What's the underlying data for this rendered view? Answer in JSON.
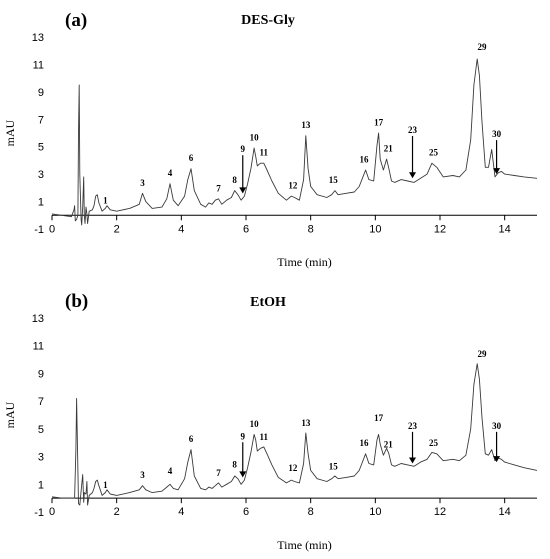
{
  "chart_data": [
    {
      "type": "line",
      "panel_label": "(a)",
      "title": "DES-Gly",
      "xlabel": "Time (min)",
      "ylabel": "mAU",
      "xlim": [
        0,
        15
      ],
      "ylim": [
        -1,
        13
      ],
      "xticks": [
        "0",
        "2",
        "4",
        "6",
        "8",
        "10",
        "12",
        "14"
      ],
      "yticks": [
        "-1",
        "1",
        "3",
        "5",
        "7",
        "9",
        "11",
        "13"
      ],
      "grid": false,
      "series": [
        {
          "x": [
            0,
            0.3,
            0.6,
            0.68,
            0.7,
            0.72,
            0.76,
            0.8,
            0.82,
            0.84,
            0.86,
            0.9,
            0.92,
            0.95,
            0.98,
            1.0,
            1.02,
            1.05,
            1.08,
            1.1,
            1.15,
            1.25,
            1.3,
            1.35,
            1.4,
            1.45,
            1.55,
            1.65,
            1.7,
            1.8,
            2.0,
            2.4,
            2.7,
            2.8,
            2.9,
            3.1,
            3.4,
            3.55,
            3.65,
            3.75,
            3.9,
            4.1,
            4.2,
            4.3,
            4.4,
            4.6,
            4.75,
            4.85,
            4.95,
            5.05,
            5.15,
            5.25,
            5.4,
            5.55,
            5.65,
            5.75,
            5.85,
            5.95,
            6.05,
            6.15,
            6.25,
            6.3,
            6.35,
            6.45,
            6.55,
            6.65,
            6.8,
            7.0,
            7.25,
            7.4,
            7.5,
            7.65,
            7.78,
            7.85,
            7.92,
            8.0,
            8.2,
            8.5,
            8.65,
            8.75,
            8.85,
            9.1,
            9.35,
            9.5,
            9.6,
            9.7,
            9.8,
            9.95,
            10.05,
            10.1,
            10.15,
            10.25,
            10.35,
            10.42,
            10.5,
            10.6,
            10.8,
            11.0,
            11.2,
            11.4,
            11.6,
            11.75,
            11.9,
            12.1,
            12.4,
            12.6,
            12.8,
            12.95,
            13.05,
            13.15,
            13.22,
            13.3,
            13.4,
            13.5,
            13.6,
            13.7,
            13.8,
            13.9,
            14.0,
            14.3,
            14.6,
            15.0
          ],
          "y": [
            0.1,
            0,
            -0.1,
            0.4,
            0.7,
            -0.4,
            -0.3,
            0,
            6,
            9.5,
            3,
            -0.3,
            -0.7,
            0.6,
            2.8,
            0,
            -0.6,
            0.6,
            0.1,
            -0.6,
            0.3,
            0.4,
            0.7,
            1.4,
            1.5,
            0.9,
            0.3,
            0.5,
            0.7,
            0.4,
            0.3,
            0.5,
            0.8,
            1.6,
            1,
            0.5,
            0.6,
            1.2,
            2.3,
            1.1,
            0.7,
            1.4,
            2.6,
            3.4,
            1.8,
            0.8,
            0.6,
            0.9,
            0.8,
            1.1,
            1.2,
            0.8,
            1.1,
            1.3,
            1.8,
            1.5,
            1.1,
            1.4,
            2.3,
            3.4,
            4.9,
            4.3,
            3.6,
            3.8,
            3.8,
            3.3,
            2.5,
            1.6,
            1.1,
            1.4,
            1.3,
            1.1,
            2.6,
            5.8,
            3.4,
            2.1,
            1.5,
            1.3,
            1.5,
            1.8,
            1.5,
            1.6,
            1.7,
            2.1,
            2.7,
            3.3,
            2.6,
            2.5,
            5.1,
            6,
            4.1,
            3.3,
            4.1,
            3.4,
            2.5,
            2.4,
            2.6,
            2.5,
            2.4,
            2.7,
            3.0,
            3.8,
            3.5,
            2.8,
            2.9,
            2.8,
            3.3,
            5.5,
            9.5,
            11.4,
            10.2,
            6.8,
            3.5,
            3.5,
            4.8,
            2.8,
            3.1,
            3.2,
            3,
            2.9,
            2.8,
            2.7
          ]
        }
      ],
      "annotations": [
        {
          "label": "1",
          "x": 1.65,
          "y": 0.85
        },
        {
          "label": "3",
          "x": 2.8,
          "y": 2.15
        },
        {
          "label": "4",
          "x": 3.65,
          "y": 2.85
        },
        {
          "label": "6",
          "x": 4.3,
          "y": 3.95
        },
        {
          "label": "7",
          "x": 5.15,
          "y": 1.75
        },
        {
          "label": "8",
          "x": 5.65,
          "y": 2.35
        },
        {
          "label": "9",
          "x": 5.9,
          "y": 4.6,
          "arrow_to_y": 1.6
        },
        {
          "label": "10",
          "x": 6.25,
          "y": 5.45
        },
        {
          "label": "11",
          "x": 6.55,
          "y": 4.35
        },
        {
          "label": "12",
          "x": 7.45,
          "y": 1.95
        },
        {
          "label": "13",
          "x": 7.85,
          "y": 6.35
        },
        {
          "label": "15",
          "x": 8.7,
          "y": 2.35
        },
        {
          "label": "16",
          "x": 9.65,
          "y": 3.85
        },
        {
          "label": "17",
          "x": 10.1,
          "y": 6.55
        },
        {
          "label": "21",
          "x": 10.4,
          "y": 4.65
        },
        {
          "label": "23",
          "x": 11.15,
          "y": 6.0,
          "arrow_to_y": 2.7
        },
        {
          "label": "25",
          "x": 11.8,
          "y": 4.35
        },
        {
          "label": "29",
          "x": 13.3,
          "y": 12.05
        },
        {
          "label": "30",
          "x": 13.75,
          "y": 5.7,
          "arrow_to_y": 3.0
        }
      ]
    },
    {
      "type": "line",
      "panel_label": "(b)",
      "title": "EtOH",
      "xlabel": "Time (min)",
      "ylabel": "mAU",
      "xlim": [
        0,
        15
      ],
      "ylim": [
        -1,
        13
      ],
      "xticks": [
        "0",
        "2",
        "4",
        "6",
        "8",
        "10",
        "12",
        "14"
      ],
      "yticks": [
        "-1",
        "1",
        "3",
        "5",
        "7",
        "9",
        "11",
        "13"
      ],
      "grid": false,
      "series": [
        {
          "x": [
            0,
            0.3,
            0.6,
            0.7,
            0.74,
            0.76,
            0.8,
            0.82,
            0.86,
            0.9,
            0.95,
            0.98,
            1.0,
            1.05,
            1.08,
            1.1,
            1.15,
            1.25,
            1.3,
            1.35,
            1.4,
            1.45,
            1.55,
            1.65,
            1.7,
            1.8,
            2.0,
            2.4,
            2.7,
            2.8,
            2.9,
            3.1,
            3.4,
            3.55,
            3.65,
            3.75,
            3.9,
            4.1,
            4.2,
            4.3,
            4.4,
            4.6,
            4.75,
            4.85,
            4.95,
            5.05,
            5.15,
            5.25,
            5.4,
            5.55,
            5.65,
            5.75,
            5.85,
            5.95,
            6.05,
            6.15,
            6.25,
            6.3,
            6.35,
            6.45,
            6.55,
            6.65,
            6.8,
            7.0,
            7.25,
            7.4,
            7.5,
            7.65,
            7.78,
            7.85,
            7.92,
            8.0,
            8.2,
            8.5,
            8.65,
            8.75,
            8.85,
            9.1,
            9.35,
            9.5,
            9.6,
            9.7,
            9.8,
            9.95,
            10.05,
            10.1,
            10.15,
            10.25,
            10.35,
            10.42,
            10.5,
            10.6,
            10.8,
            11.0,
            11.2,
            11.4,
            11.6,
            11.75,
            11.9,
            12.1,
            12.4,
            12.6,
            12.8,
            12.95,
            13.05,
            13.15,
            13.22,
            13.3,
            13.4,
            13.5,
            13.6,
            13.7,
            13.8,
            13.9,
            14.0,
            14.3,
            14.6,
            15.0
          ],
          "y": [
            0.1,
            0,
            0,
            0,
            3.5,
            7.2,
            2,
            -0.4,
            -0.5,
            0.5,
            1.7,
            -0.3,
            0.4,
            0.3,
            1.2,
            -0.5,
            0.2,
            0.4,
            0.7,
            1.2,
            1.3,
            0.9,
            0.2,
            0.4,
            0.6,
            0.3,
            0.2,
            0.4,
            0.6,
            0.9,
            0.6,
            0.4,
            0.5,
            0.8,
            1.0,
            0.7,
            0.6,
            1.4,
            2.6,
            3.5,
            1.6,
            0.7,
            0.6,
            0.8,
            0.7,
            0.9,
            1.1,
            0.8,
            1.0,
            1.2,
            1.6,
            1.4,
            1.0,
            1.3,
            2.2,
            3.3,
            4.6,
            4.2,
            3.4,
            3.6,
            3.7,
            3.2,
            2.4,
            1.5,
            1.1,
            1.3,
            1.2,
            1.1,
            2.5,
            4.7,
            3.2,
            2.0,
            1.4,
            1.2,
            1.4,
            1.6,
            1.4,
            1.5,
            1.6,
            2.0,
            2.6,
            3.2,
            2.5,
            2.4,
            4.2,
            4.6,
            3.9,
            3.1,
            3.6,
            3.2,
            2.4,
            2.3,
            2.5,
            2.4,
            2.3,
            2.6,
            2.8,
            3.3,
            3.2,
            2.7,
            2.8,
            2.7,
            3.1,
            5.0,
            8.2,
            9.7,
            8.6,
            5.8,
            3.2,
            3.1,
            3.5,
            2.7,
            2.9,
            2.8,
            2.6,
            2.4,
            2.2,
            2.0
          ]
        }
      ],
      "annotations": [
        {
          "label": "1",
          "x": 1.65,
          "y": 0.75
        },
        {
          "label": "3",
          "x": 2.8,
          "y": 1.45
        },
        {
          "label": "4",
          "x": 3.65,
          "y": 1.75
        },
        {
          "label": "6",
          "x": 4.3,
          "y": 4.05
        },
        {
          "label": "7",
          "x": 5.15,
          "y": 1.6
        },
        {
          "label": "8",
          "x": 5.65,
          "y": 2.2
        },
        {
          "label": "9",
          "x": 5.9,
          "y": 4.25,
          "arrow_to_y": 1.5
        },
        {
          "label": "10",
          "x": 6.25,
          "y": 5.15
        },
        {
          "label": "11",
          "x": 6.55,
          "y": 4.2
        },
        {
          "label": "12",
          "x": 7.45,
          "y": 1.95
        },
        {
          "label": "13",
          "x": 7.85,
          "y": 5.2
        },
        {
          "label": "15",
          "x": 8.7,
          "y": 2.05
        },
        {
          "label": "16",
          "x": 9.65,
          "y": 3.75
        },
        {
          "label": "17",
          "x": 10.1,
          "y": 5.55
        },
        {
          "label": "21",
          "x": 10.4,
          "y": 3.65
        },
        {
          "label": "23",
          "x": 11.15,
          "y": 5.0,
          "arrow_to_y": 2.5
        },
        {
          "label": "25",
          "x": 11.8,
          "y": 3.75
        },
        {
          "label": "29",
          "x": 13.3,
          "y": 10.2
        },
        {
          "label": "30",
          "x": 13.75,
          "y": 5.0,
          "arrow_to_y": 2.6
        }
      ]
    }
  ]
}
